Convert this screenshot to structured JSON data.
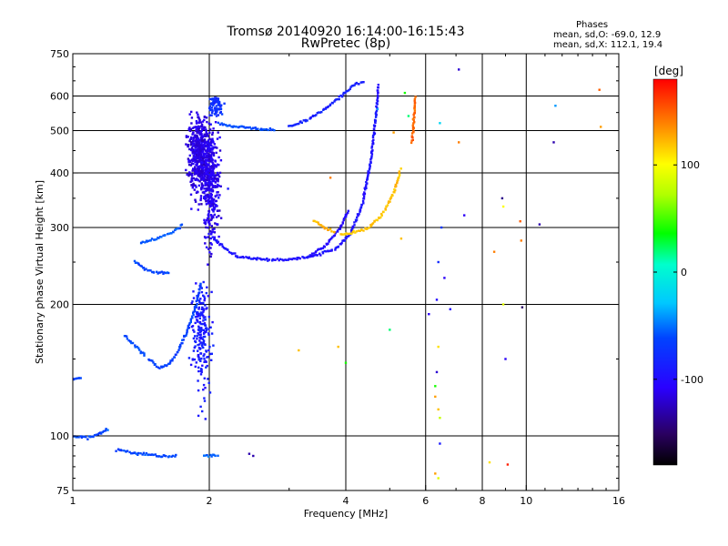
{
  "header": {
    "title_line1": "Tromsø 20140920 16:14:00-16:15:43",
    "title_line2": "RwPretec (8p)"
  },
  "stats": {
    "heading": "Phases",
    "line_o": "mean, sd,O: -69.0, 12.9",
    "line_x": "mean, sd,X: 112.1, 19.4"
  },
  "colorbar": {
    "label": "[deg]",
    "ticks": [
      {
        "value": 100,
        "label": "100"
      },
      {
        "value": 0,
        "label": "0"
      },
      {
        "value": -100,
        "label": "-100"
      }
    ],
    "range": [
      -180,
      180
    ]
  },
  "chart_data": {
    "type": "scatter",
    "title": "Tromsø 20140920 16:14:00-16:15:43",
    "subtitle": "RwPretec (8p)",
    "xlabel": "Frequency [MHz]",
    "ylabel": "Stationary phase Virtual Height [km]",
    "x_scale": "log",
    "y_scale": "log",
    "xlim": [
      1,
      16
    ],
    "ylim": [
      75,
      750
    ],
    "x_ticks": [
      1,
      2,
      4,
      6,
      8,
      10,
      16
    ],
    "x_tick_labels": [
      "1",
      "2",
      "4",
      "6",
      "8",
      "10",
      "16"
    ],
    "y_ticks": [
      75,
      100,
      200,
      300,
      400,
      500,
      600,
      750
    ],
    "y_tick_labels": [
      "75",
      "100",
      "200",
      "300",
      "400",
      "500",
      "600",
      "750"
    ],
    "grid": true,
    "color_scale": "phase in deg, -180 (black) to 180 (red)",
    "series": [
      {
        "type": "cloud",
        "values": [
          {
            "x": 1.93,
            "y": 170,
            "x_spread": 0.07,
            "y_spread": 140,
            "n": 200,
            "phase": -90
          },
          {
            "x": 1.9,
            "y": 440,
            "x_spread": 0.08,
            "y_spread": 260,
            "n": 500,
            "phase": -115
          },
          {
            "x": 2.02,
            "y": 380,
            "x_spread": 0.06,
            "y_spread": 330,
            "n": 380,
            "phase": -110
          },
          {
            "x": 2.07,
            "y": 570,
            "x_spread": 0.05,
            "y_spread": 90,
            "n": 80,
            "phase": -75
          }
        ]
      },
      {
        "type": "curve",
        "phase": -65,
        "values": [
          {
            "x": 1.47,
            "y": 150
          },
          {
            "x": 1.55,
            "y": 143
          },
          {
            "x": 1.62,
            "y": 145
          },
          {
            "x": 1.7,
            "y": 155
          },
          {
            "x": 1.78,
            "y": 172
          },
          {
            "x": 1.86,
            "y": 195
          },
          {
            "x": 1.92,
            "y": 225
          }
        ]
      },
      {
        "type": "curve",
        "phase": -60,
        "values": [
          {
            "x": 1.3,
            "y": 170
          },
          {
            "x": 1.38,
            "y": 160
          },
          {
            "x": 1.45,
            "y": 152
          }
        ]
      },
      {
        "type": "curve",
        "phase": -62,
        "values": [
          {
            "x": 1.37,
            "y": 252
          },
          {
            "x": 1.45,
            "y": 240
          },
          {
            "x": 1.55,
            "y": 236
          },
          {
            "x": 1.64,
            "y": 237
          }
        ]
      },
      {
        "type": "curve",
        "phase": -58,
        "values": [
          {
            "x": 1.41,
            "y": 276
          },
          {
            "x": 1.52,
            "y": 282
          },
          {
            "x": 1.65,
            "y": 292
          },
          {
            "x": 1.75,
            "y": 305
          }
        ]
      },
      {
        "type": "curve",
        "phase": -60,
        "values": [
          {
            "x": 2.1,
            "y": 520
          },
          {
            "x": 2.3,
            "y": 510
          },
          {
            "x": 2.6,
            "y": 505
          },
          {
            "x": 2.8,
            "y": 502
          }
        ]
      },
      {
        "type": "curve",
        "phase": -95,
        "values": [
          {
            "x": 2.0,
            "y": 290
          },
          {
            "x": 2.15,
            "y": 270
          },
          {
            "x": 2.3,
            "y": 258
          },
          {
            "x": 2.6,
            "y": 253
          },
          {
            "x": 3.0,
            "y": 253
          },
          {
            "x": 3.4,
            "y": 258
          },
          {
            "x": 3.8,
            "y": 268
          },
          {
            "x": 4.1,
            "y": 290
          },
          {
            "x": 4.35,
            "y": 340
          },
          {
            "x": 4.55,
            "y": 430
          },
          {
            "x": 4.68,
            "y": 560
          },
          {
            "x": 4.72,
            "y": 640
          }
        ]
      },
      {
        "type": "curve",
        "phase": -85,
        "values": [
          {
            "x": 3.0,
            "y": 510
          },
          {
            "x": 3.3,
            "y": 530
          },
          {
            "x": 3.6,
            "y": 560
          },
          {
            "x": 3.9,
            "y": 600
          },
          {
            "x": 4.2,
            "y": 640
          },
          {
            "x": 4.4,
            "y": 650
          }
        ]
      },
      {
        "type": "curve",
        "phase": -100,
        "values": [
          {
            "x": 3.3,
            "y": 256
          },
          {
            "x": 3.6,
            "y": 272
          },
          {
            "x": 3.9,
            "y": 300
          },
          {
            "x": 4.05,
            "y": 330
          }
        ]
      },
      {
        "type": "curve",
        "phase": 120,
        "values": [
          {
            "x": 3.9,
            "y": 290
          },
          {
            "x": 4.2,
            "y": 292
          },
          {
            "x": 4.5,
            "y": 300
          },
          {
            "x": 4.8,
            "y": 320
          },
          {
            "x": 5.1,
            "y": 360
          },
          {
            "x": 5.3,
            "y": 410
          }
        ]
      },
      {
        "type": "curve",
        "phase": 125,
        "values": [
          {
            "x": 3.4,
            "y": 310
          },
          {
            "x": 3.6,
            "y": 300
          },
          {
            "x": 3.8,
            "y": 292
          }
        ]
      },
      {
        "type": "curve",
        "phase": 150,
        "values": [
          {
            "x": 5.6,
            "y": 470
          },
          {
            "x": 5.65,
            "y": 530
          },
          {
            "x": 5.7,
            "y": 600
          }
        ]
      },
      {
        "type": "curve",
        "phase": -65,
        "values": [
          {
            "x": 1.0,
            "y": 135
          },
          {
            "x": 1.05,
            "y": 136
          }
        ]
      },
      {
        "type": "curve",
        "phase": -62,
        "values": [
          {
            "x": 1.0,
            "y": 100
          },
          {
            "x": 1.08,
            "y": 99
          },
          {
            "x": 1.15,
            "y": 101
          },
          {
            "x": 1.2,
            "y": 104
          }
        ]
      },
      {
        "type": "curve",
        "phase": -60,
        "values": [
          {
            "x": 1.25,
            "y": 93
          },
          {
            "x": 1.4,
            "y": 91
          },
          {
            "x": 1.55,
            "y": 90
          },
          {
            "x": 1.7,
            "y": 90
          }
        ]
      },
      {
        "type": "curve",
        "phase": -55,
        "values": [
          {
            "x": 1.95,
            "y": 90
          },
          {
            "x": 2.1,
            "y": 90
          }
        ]
      },
      {
        "type": "points",
        "values": [
          {
            "x": 2.45,
            "y": 91,
            "phase": -130
          },
          {
            "x": 2.5,
            "y": 90,
            "phase": -130
          },
          {
            "x": 2.2,
            "y": 368,
            "phase": -90
          },
          {
            "x": 3.7,
            "y": 390,
            "phase": 140
          },
          {
            "x": 3.15,
            "y": 157,
            "phase": 120
          },
          {
            "x": 3.85,
            "y": 160,
            "phase": 120
          },
          {
            "x": 4.0,
            "y": 147,
            "phase": 40
          },
          {
            "x": 5.0,
            "y": 175,
            "phase": 20
          },
          {
            "x": 5.3,
            "y": 283,
            "phase": 120
          },
          {
            "x": 5.5,
            "y": 540,
            "phase": 20
          },
          {
            "x": 6.1,
            "y": 190,
            "phase": -110
          },
          {
            "x": 6.35,
            "y": 205,
            "phase": -100
          },
          {
            "x": 6.4,
            "y": 250,
            "phase": -80
          },
          {
            "x": 6.4,
            "y": 160,
            "phase": 110
          },
          {
            "x": 6.3,
            "y": 130,
            "phase": 40
          },
          {
            "x": 6.3,
            "y": 123,
            "phase": 130
          },
          {
            "x": 6.4,
            "y": 115,
            "phase": 120
          },
          {
            "x": 6.45,
            "y": 110,
            "phase": 80
          },
          {
            "x": 6.35,
            "y": 140,
            "phase": -120
          },
          {
            "x": 6.45,
            "y": 96,
            "phase": -90
          },
          {
            "x": 6.6,
            "y": 230,
            "phase": -110
          },
          {
            "x": 6.5,
            "y": 300,
            "phase": -70
          },
          {
            "x": 6.3,
            "y": 82,
            "phase": 130
          },
          {
            "x": 6.4,
            "y": 80,
            "phase": 90
          },
          {
            "x": 6.8,
            "y": 195,
            "phase": -100
          },
          {
            "x": 7.1,
            "y": 690,
            "phase": -120
          },
          {
            "x": 7.1,
            "y": 470,
            "phase": 140
          },
          {
            "x": 7.3,
            "y": 320,
            "phase": -110
          },
          {
            "x": 6.45,
            "y": 520,
            "phase": -20
          },
          {
            "x": 8.3,
            "y": 87,
            "phase": 110
          },
          {
            "x": 8.5,
            "y": 264,
            "phase": 140
          },
          {
            "x": 8.85,
            "y": 350,
            "phase": -140
          },
          {
            "x": 8.9,
            "y": 335,
            "phase": 100
          },
          {
            "x": 8.9,
            "y": 200,
            "phase": 90
          },
          {
            "x": 9.0,
            "y": 150,
            "phase": -110
          },
          {
            "x": 9.1,
            "y": 86,
            "phase": 170
          },
          {
            "x": 9.7,
            "y": 310,
            "phase": 150
          },
          {
            "x": 9.75,
            "y": 280,
            "phase": 140
          },
          {
            "x": 9.8,
            "y": 197,
            "phase": -150
          },
          {
            "x": 10.7,
            "y": 305,
            "phase": -130
          },
          {
            "x": 11.5,
            "y": 470,
            "phase": -130
          },
          {
            "x": 11.6,
            "y": 570,
            "phase": -40
          },
          {
            "x": 14.5,
            "y": 620,
            "phase": 150
          },
          {
            "x": 14.6,
            "y": 510,
            "phase": 130
          },
          {
            "x": 4.7,
            "y": 560,
            "phase": -40
          },
          {
            "x": 5.1,
            "y": 495,
            "phase": 130
          },
          {
            "x": 5.4,
            "y": 610,
            "phase": 40
          }
        ]
      }
    ]
  }
}
